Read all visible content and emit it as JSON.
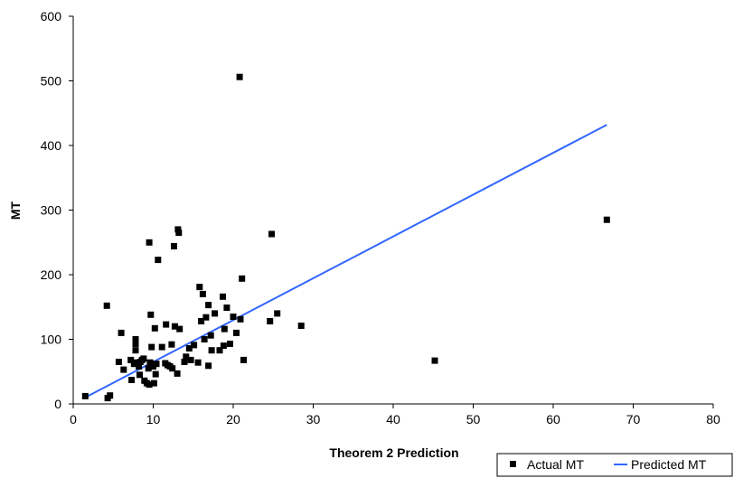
{
  "chart_data": {
    "type": "scatter",
    "title": "",
    "xlabel": "Theorem 2 Prediction",
    "ylabel": "MT",
    "xlim": [
      0,
      80
    ],
    "ylim": [
      0,
      600
    ],
    "x_ticks": [
      0,
      10,
      20,
      30,
      40,
      50,
      60,
      70,
      80
    ],
    "y_ticks": [
      0,
      100,
      200,
      300,
      400,
      500,
      600
    ],
    "grid": false,
    "legend_position": "bottom-right",
    "series": [
      {
        "name": "Actual MT",
        "kind": "scatter",
        "marker": "square",
        "color": "#000000",
        "points": [
          [
            1.5,
            12
          ],
          [
            4.2,
            152
          ],
          [
            4.3,
            9
          ],
          [
            4.6,
            13
          ],
          [
            5.7,
            65
          ],
          [
            6.0,
            110
          ],
          [
            6.3,
            53
          ],
          [
            7.2,
            68
          ],
          [
            7.3,
            37
          ],
          [
            7.6,
            62
          ],
          [
            7.8,
            100
          ],
          [
            7.8,
            93
          ],
          [
            7.8,
            83
          ],
          [
            7.9,
            64
          ],
          [
            8.2,
            58
          ],
          [
            8.3,
            45
          ],
          [
            8.4,
            65
          ],
          [
            8.6,
            68
          ],
          [
            8.8,
            70
          ],
          [
            8.9,
            36
          ],
          [
            9.2,
            32
          ],
          [
            9.4,
            55
          ],
          [
            9.5,
            250
          ],
          [
            9.5,
            30
          ],
          [
            9.6,
            64
          ],
          [
            9.7,
            138
          ],
          [
            9.8,
            88
          ],
          [
            10.0,
            58
          ],
          [
            10.1,
            32
          ],
          [
            10.2,
            117
          ],
          [
            10.3,
            46
          ],
          [
            10.4,
            62
          ],
          [
            10.6,
            223
          ],
          [
            11.1,
            88
          ],
          [
            11.5,
            63
          ],
          [
            11.6,
            123
          ],
          [
            11.8,
            60
          ],
          [
            12.1,
            58
          ],
          [
            12.3,
            92
          ],
          [
            12.4,
            55
          ],
          [
            12.6,
            244
          ],
          [
            12.7,
            120
          ],
          [
            13.0,
            47
          ],
          [
            13.1,
            270
          ],
          [
            13.2,
            265
          ],
          [
            13.3,
            116
          ],
          [
            13.9,
            65
          ],
          [
            14.1,
            73
          ],
          [
            14.5,
            86
          ],
          [
            14.7,
            68
          ],
          [
            15.1,
            91
          ],
          [
            15.6,
            64
          ],
          [
            15.8,
            181
          ],
          [
            16.0,
            128
          ],
          [
            16.2,
            170
          ],
          [
            16.4,
            100
          ],
          [
            16.6,
            134
          ],
          [
            16.9,
            153
          ],
          [
            16.9,
            59
          ],
          [
            17.2,
            106
          ],
          [
            17.3,
            83
          ],
          [
            17.7,
            140
          ],
          [
            18.3,
            83
          ],
          [
            18.7,
            166
          ],
          [
            18.8,
            90
          ],
          [
            18.9,
            116
          ],
          [
            19.2,
            149
          ],
          [
            19.6,
            93
          ],
          [
            20.0,
            135
          ],
          [
            20.4,
            110
          ],
          [
            20.8,
            506
          ],
          [
            20.9,
            131
          ],
          [
            21.1,
            194
          ],
          [
            21.3,
            68
          ],
          [
            24.6,
            128
          ],
          [
            24.8,
            263
          ],
          [
            25.5,
            140
          ],
          [
            28.5,
            121
          ],
          [
            45.2,
            67
          ],
          [
            66.7,
            285
          ]
        ]
      },
      {
        "name": "Predicted MT",
        "kind": "line",
        "color": "#3366ff",
        "points": [
          [
            1.5,
            10
          ],
          [
            66.7,
            432
          ]
        ]
      }
    ]
  }
}
